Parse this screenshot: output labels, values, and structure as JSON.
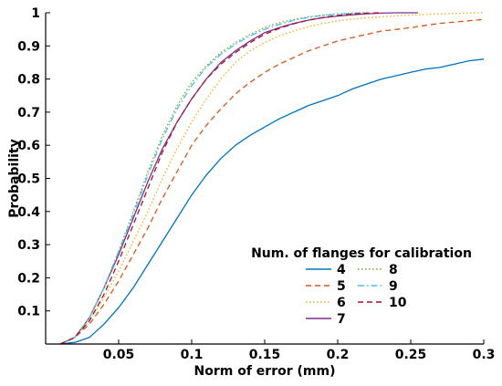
{
  "chart_data": {
    "type": "line",
    "xlabel": "Norm of error (mm)",
    "ylabel": "Probability",
    "xlim": [
      0,
      0.3
    ],
    "ylim": [
      0,
      1
    ],
    "xticks": [
      0.05,
      0.1,
      0.15,
      0.2,
      0.25,
      0.3
    ],
    "xtick_labels": [
      "0.05",
      "0.1",
      "0.15",
      "0.2",
      "0.25",
      "0.3"
    ],
    "yticks": [
      0.1,
      0.2,
      0.3,
      0.4,
      0.5,
      0.6,
      0.7,
      0.8,
      0.9,
      1
    ],
    "ytick_labels": [
      "0.1",
      "0.2",
      "0.3",
      "0.4",
      "0.5",
      "0.6",
      "0.7",
      "0.8",
      "0.9",
      "1"
    ],
    "grid": false,
    "legend": {
      "title": "Num. of flanges for calibration",
      "placement": "bottom-right",
      "columns": 2
    },
    "series": [
      {
        "name": "4",
        "color": "#0072BD",
        "dash": "solid",
        "x": [
          0.01,
          0.02,
          0.03,
          0.04,
          0.05,
          0.06,
          0.07,
          0.08,
          0.09,
          0.1,
          0.11,
          0.12,
          0.13,
          0.14,
          0.15,
          0.16,
          0.17,
          0.18,
          0.19,
          0.2,
          0.21,
          0.22,
          0.23,
          0.24,
          0.25,
          0.26,
          0.27,
          0.28,
          0.29,
          0.3
        ],
        "y": [
          0,
          0.005,
          0.02,
          0.06,
          0.11,
          0.17,
          0.24,
          0.31,
          0.38,
          0.45,
          0.51,
          0.56,
          0.6,
          0.63,
          0.655,
          0.68,
          0.7,
          0.72,
          0.735,
          0.75,
          0.77,
          0.785,
          0.8,
          0.81,
          0.82,
          0.83,
          0.835,
          0.845,
          0.855,
          0.86
        ]
      },
      {
        "name": "5",
        "color": "#D95319",
        "dash": "dashed",
        "x": [
          0.01,
          0.02,
          0.03,
          0.04,
          0.05,
          0.06,
          0.07,
          0.08,
          0.09,
          0.1,
          0.11,
          0.12,
          0.13,
          0.14,
          0.15,
          0.16,
          0.17,
          0.18,
          0.19,
          0.2,
          0.21,
          0.22,
          0.23,
          0.24,
          0.25,
          0.26,
          0.27,
          0.28,
          0.29,
          0.3
        ],
        "y": [
          0,
          0.02,
          0.06,
          0.12,
          0.19,
          0.27,
          0.35,
          0.44,
          0.52,
          0.6,
          0.66,
          0.71,
          0.755,
          0.79,
          0.82,
          0.845,
          0.865,
          0.885,
          0.9,
          0.915,
          0.925,
          0.935,
          0.945,
          0.95,
          0.955,
          0.962,
          0.968,
          0.972,
          0.976,
          0.98
        ]
      },
      {
        "name": "6",
        "color": "#EDB120",
        "dash": "dotted",
        "x": [
          0.01,
          0.02,
          0.03,
          0.04,
          0.05,
          0.06,
          0.07,
          0.08,
          0.09,
          0.1,
          0.11,
          0.12,
          0.13,
          0.14,
          0.15,
          0.16,
          0.17,
          0.18,
          0.19,
          0.2,
          0.22,
          0.24,
          0.26,
          0.28,
          0.3
        ],
        "y": [
          0,
          0.02,
          0.07,
          0.14,
          0.22,
          0.31,
          0.4,
          0.5,
          0.59,
          0.67,
          0.74,
          0.8,
          0.85,
          0.885,
          0.91,
          0.93,
          0.945,
          0.958,
          0.968,
          0.976,
          0.985,
          0.991,
          0.995,
          0.998,
          1
        ]
      },
      {
        "name": "7",
        "color": "#7E2F8E",
        "dash": "solid",
        "x": [
          0.01,
          0.02,
          0.03,
          0.04,
          0.05,
          0.06,
          0.07,
          0.08,
          0.09,
          0.1,
          0.11,
          0.12,
          0.13,
          0.14,
          0.15,
          0.16,
          0.17,
          0.18,
          0.19,
          0.2,
          0.21,
          0.22,
          0.23,
          0.24,
          0.255
        ],
        "y": [
          0,
          0.02,
          0.08,
          0.17,
          0.27,
          0.38,
          0.49,
          0.59,
          0.67,
          0.74,
          0.8,
          0.85,
          0.885,
          0.915,
          0.94,
          0.955,
          0.968,
          0.978,
          0.985,
          0.99,
          0.994,
          0.997,
          0.999,
          1,
          1
        ]
      },
      {
        "name": "8",
        "color": "#77AC30",
        "dash": "dotted",
        "x": [
          0.01,
          0.02,
          0.03,
          0.04,
          0.05,
          0.06,
          0.07,
          0.08,
          0.09,
          0.1,
          0.11,
          0.12,
          0.13,
          0.14,
          0.15,
          0.16,
          0.17,
          0.18,
          0.19,
          0.2,
          0.21,
          0.22
        ],
        "y": [
          0,
          0.02,
          0.08,
          0.17,
          0.28,
          0.4,
          0.52,
          0.63,
          0.72,
          0.79,
          0.84,
          0.88,
          0.91,
          0.935,
          0.955,
          0.97,
          0.98,
          0.988,
          0.993,
          0.997,
          0.999,
          1
        ]
      },
      {
        "name": "9",
        "color": "#4DBEEE",
        "dash": "dashdot",
        "x": [
          0.01,
          0.02,
          0.03,
          0.04,
          0.05,
          0.06,
          0.07,
          0.08,
          0.09,
          0.1,
          0.11,
          0.12,
          0.13,
          0.14,
          0.15,
          0.16,
          0.17,
          0.18,
          0.19,
          0.2,
          0.21,
          0.22
        ],
        "y": [
          0,
          0.02,
          0.08,
          0.17,
          0.28,
          0.39,
          0.51,
          0.62,
          0.71,
          0.78,
          0.835,
          0.875,
          0.905,
          0.93,
          0.95,
          0.965,
          0.977,
          0.986,
          0.992,
          0.996,
          0.999,
          1
        ]
      },
      {
        "name": "10",
        "color": "#A2142F",
        "dash": "dashed",
        "x": [
          0.01,
          0.02,
          0.03,
          0.04,
          0.05,
          0.06,
          0.07,
          0.08,
          0.09,
          0.1,
          0.11,
          0.12,
          0.13,
          0.14,
          0.15,
          0.16,
          0.17,
          0.18,
          0.19,
          0.2,
          0.21,
          0.22,
          0.23
        ],
        "y": [
          0,
          0.02,
          0.07,
          0.15,
          0.25,
          0.36,
          0.47,
          0.58,
          0.67,
          0.74,
          0.8,
          0.845,
          0.88,
          0.91,
          0.935,
          0.953,
          0.967,
          0.978,
          0.986,
          0.992,
          0.996,
          0.999,
          1
        ]
      }
    ]
  }
}
